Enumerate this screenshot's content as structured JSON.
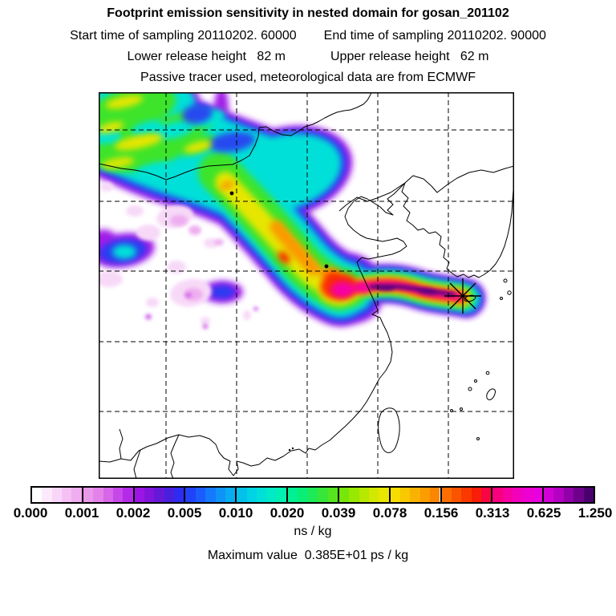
{
  "header": {
    "title": "Footprint emission sensitivity in nested domain for gosan_201102",
    "start_time": "Start time of sampling 20110202. 60000",
    "end_time": "End time of sampling 20110202. 90000",
    "lower_release": "Lower release height   82 m",
    "upper_release": "Upper release height   62 m",
    "tracer_line": "Passive tracer used, meteorological data are from ECMWF"
  },
  "colorbar": {
    "unit": "ns / kg",
    "tick_labels": [
      "0.000",
      "0.001",
      "0.002",
      "0.005",
      "0.010",
      "0.020",
      "0.039",
      "0.078",
      "0.156",
      "0.313",
      "0.625",
      "1.250"
    ],
    "blocks": [
      [
        "#ffffff",
        "#fceafc",
        "#f9d6f9",
        "#f5c1f5",
        "#f0adf0"
      ],
      [
        "#ea98ea",
        "#e383e9",
        "#d766e9",
        "#c748e9",
        "#b52ae9"
      ],
      [
        "#9c15e4",
        "#8214dc",
        "#6518d8",
        "#4920de",
        "#2e2cf0"
      ],
      [
        "#2043fa",
        "#1a5dfc",
        "#1479fa",
        "#0e94f6",
        "#08acf0"
      ],
      [
        "#03c1ea",
        "#00d3e4",
        "#00e0d8",
        "#00eac6",
        "#00f0b0"
      ],
      [
        "#00f094",
        "#0aee76",
        "#1dea56",
        "#37e639",
        "#56e41e"
      ],
      [
        "#77e60b",
        "#98e802",
        "#b7e800",
        "#d3e800",
        "#e9e600"
      ],
      [
        "#f8dc00",
        "#f9c800",
        "#fab200",
        "#fb9c00",
        "#fb8600"
      ],
      [
        "#fb6f00",
        "#fa5400",
        "#f93900",
        "#f81e08",
        "#f80542"
      ],
      [
        "#f8007e",
        "#f700a2",
        "#f300bc",
        "#ee00d0",
        "#e800de"
      ],
      [
        "#d300d6",
        "#b400c2",
        "#9100a8",
        "#6e008c",
        "#49006e"
      ]
    ]
  },
  "footer": {
    "max_value_line": "Maximum value  0.385E+01 ps / kg"
  },
  "map": {
    "station": "gosan",
    "marker": "asterisk",
    "grid_style": "dashed",
    "features": [
      "China coast",
      "Bohai Sea",
      "Shandong peninsula",
      "Korean peninsula",
      "Jeju (Gosan) station",
      "Taiwan",
      "Mongolia-Russia borders",
      "South China coast"
    ],
    "palette": {
      "violet": "#a21ae8",
      "blue": "#2b3af2",
      "cyan": "#00e0d8",
      "green": "#3ce42a",
      "cyanpatch": "#00e4d4",
      "bluepatch": "#2848f0",
      "yellow": "#e6e600",
      "orange": "#fb9900",
      "red": "#f92c00",
      "magenta": "#f500a8",
      "darkpurple": "#5a0082",
      "pale": "#f7d9f7",
      "midpink": "#eeaff0",
      "speck": "#cf63e8"
    }
  },
  "chart_data": {
    "type": "heatmap",
    "title": "Footprint emission sensitivity in nested domain for gosan_201102",
    "station": "gosan_201102",
    "sampling_start": "20110202. 60000",
    "sampling_end": "20110202. 90000",
    "lower_release_height_m": 82,
    "upper_release_height_m": 62,
    "tracer": "Passive tracer",
    "meteorology": "ECMWF",
    "colorbar_levels_ns_per_kg": [
      0.0,
      0.001,
      0.002,
      0.005,
      0.01,
      0.02,
      0.039,
      0.078,
      0.156,
      0.313,
      0.625,
      1.25
    ],
    "colorbar_unit": "ns / kg",
    "maximum_value": "0.385E+01 ps / kg",
    "region": "East Asia (China, Korea, Japan, Taiwan)",
    "legend_position": "bottom",
    "grid": true,
    "description": "Emission-sensitivity footprint plume: highest values (0.31-1.25 ns/kg, magenta to dark purple) in a narrow east-west band just west of the Gosan station marker (Jeju) across the Yellow Sea near 33-34N; mid values (0.02-0.3 ns/kg, green-yellow-orange-red) in a broad band arcing northwest across eastern China; low values (0.001-0.02 ns/kg, cyan-blue-violet) spreading over Mongolia/northern China in the upper-left; scattered patches below 0.002 ns/kg (pale pink) to the southwest."
  }
}
